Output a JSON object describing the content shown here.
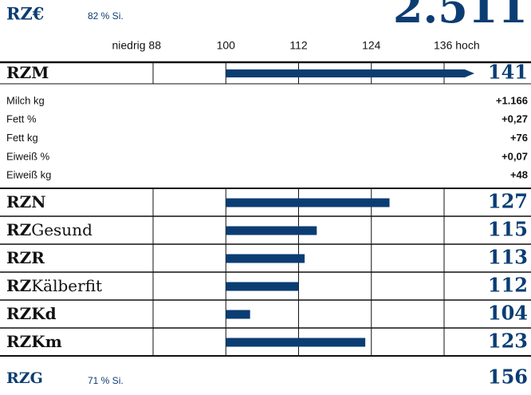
{
  "chart_data": {
    "type": "bar",
    "header": {
      "name": "RZ€",
      "reliability": "82 % Si.",
      "value": 2511,
      "value_label": "2.511"
    },
    "xlim": [
      88,
      136
    ],
    "xticks": [
      {
        "value": 88,
        "label": "niedrig 88"
      },
      100,
      112,
      124,
      {
        "value": 136,
        "label": "136 hoch"
      }
    ],
    "bar_base": 100,
    "color": "#0b3d73",
    "main": {
      "name": [
        "RZM"
      ],
      "value": 141
    },
    "traits": [
      {
        "name": "Milch kg",
        "value": 1166,
        "label": "+1.166"
      },
      {
        "name": "Fett %",
        "value": 0.27,
        "label": "+0,27"
      },
      {
        "name": "Fett kg",
        "value": 76,
        "label": "+76"
      },
      {
        "name": "Eiweiß %",
        "value": 0.07,
        "label": "+0,07"
      },
      {
        "name": "Eiweiß kg",
        "value": 48,
        "label": "+48"
      }
    ],
    "rows": [
      {
        "name": [
          "RZN"
        ],
        "value": 127
      },
      {
        "name": [
          "RZ",
          "Gesund"
        ],
        "value": 115
      },
      {
        "name": [
          "RZR"
        ],
        "value": 113
      },
      {
        "name": [
          "RZ",
          "Kälberfit"
        ],
        "value": 112
      },
      {
        "name": [
          "RZKd"
        ],
        "value": 104
      },
      {
        "name": [
          "RZKm"
        ],
        "value": 123
      }
    ],
    "footer": {
      "name": "RZG",
      "reliability": "71 % Si.",
      "value": 156
    }
  }
}
